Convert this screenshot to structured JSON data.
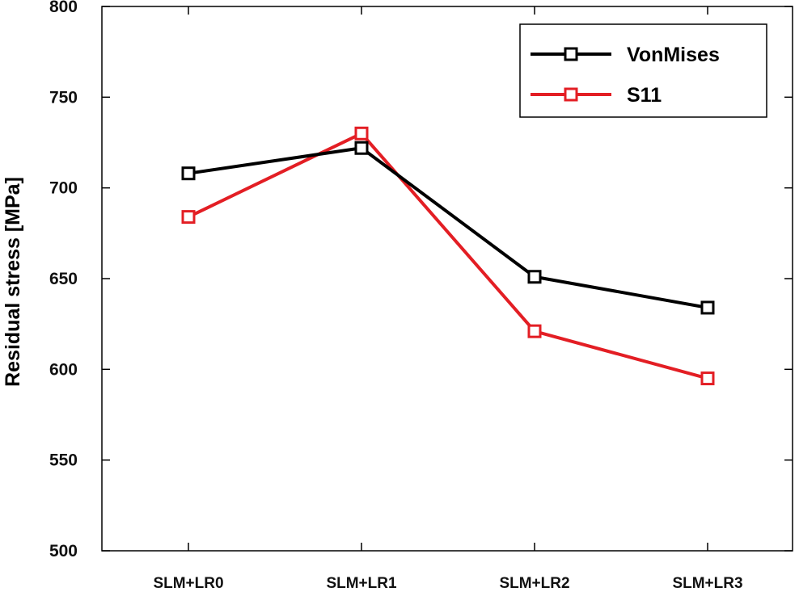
{
  "chart_data": {
    "type": "line",
    "title": "",
    "xlabel": "",
    "ylabel": "Residual stress [MPa]",
    "categories": [
      "SLM+LR0",
      "SLM+LR1",
      "SLM+LR2",
      "SLM+LR3"
    ],
    "ylim": [
      500,
      800
    ],
    "yticks": [
      500,
      550,
      600,
      650,
      700,
      750,
      800
    ],
    "grid": false,
    "legend_position": "top-right",
    "marker": "square",
    "series": [
      {
        "name": "VonMises",
        "color": "#000000",
        "values": [
          708,
          722,
          651,
          634
        ]
      },
      {
        "name": "S11",
        "color": "#e31e24",
        "values": [
          684,
          730,
          621,
          595
        ]
      }
    ]
  }
}
